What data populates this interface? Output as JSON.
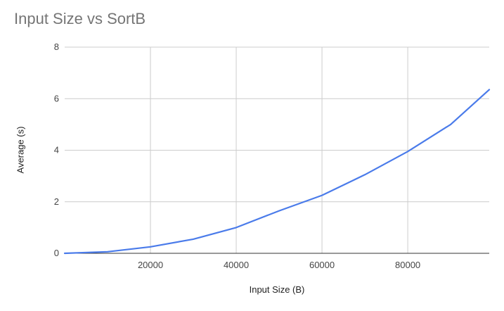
{
  "chart_data": {
    "type": "line",
    "title": "Input Size vs SortB",
    "xlabel": "Input Size (B)",
    "ylabel": "Average (s)",
    "xlim": [
      0,
      99000
    ],
    "ylim": [
      0,
      8
    ],
    "x_ticks": [
      20000,
      40000,
      60000,
      80000
    ],
    "x_tick_labels": [
      "20000",
      "40000",
      "60000",
      "80000"
    ],
    "y_ticks": [
      0,
      2,
      4,
      6,
      8
    ],
    "y_tick_labels": [
      "0",
      "2",
      "4",
      "6",
      "8"
    ],
    "grid": true,
    "legend": "none",
    "series": [
      {
        "color": "#4a7bea",
        "x": [
          0,
          10000,
          20000,
          30000,
          40000,
          50000,
          60000,
          70000,
          80000,
          90000,
          99000
        ],
        "y": [
          0,
          0.06,
          0.25,
          0.55,
          1.0,
          1.65,
          2.25,
          3.05,
          3.95,
          5.0,
          6.35
        ]
      }
    ]
  }
}
